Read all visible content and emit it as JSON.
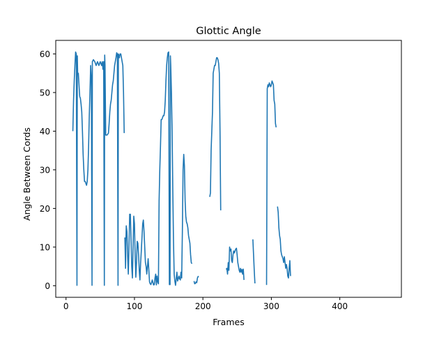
{
  "chart_data": {
    "type": "line",
    "title": "Glottic Angle",
    "xlabel": "Frames",
    "ylabel": "Angle Between Cords",
    "xlim": [
      -15,
      490
    ],
    "ylim": [
      -3.0,
      63.5
    ],
    "xticks": [
      0,
      100,
      200,
      300,
      400
    ],
    "yticks": [
      0,
      10,
      20,
      30,
      40,
      50,
      60
    ],
    "grid": false,
    "legend": "none",
    "line_color": "#1f77b4",
    "series": [
      {
        "segments": [
          [
            [
              10,
              40
            ],
            [
              11,
              48
            ],
            [
              12,
              53
            ],
            [
              13,
              57
            ],
            [
              14,
              60.5
            ],
            [
              15,
              60
            ],
            [
              16,
              0.1
            ],
            [
              16.5,
              59.5
            ],
            [
              17,
              55
            ],
            [
              18,
              55
            ],
            [
              19,
              52
            ],
            [
              20,
              49
            ],
            [
              21,
              48.5
            ],
            [
              22,
              47
            ],
            [
              23,
              45
            ],
            [
              24,
              40
            ],
            [
              25,
              34
            ],
            [
              26,
              30
            ],
            [
              27,
              27
            ],
            [
              28,
              27
            ],
            [
              29,
              26.5
            ],
            [
              30,
              26
            ],
            [
              31,
              27
            ],
            [
              32,
              30
            ],
            [
              33,
              36
            ],
            [
              34,
              44
            ],
            [
              35,
              50
            ],
            [
              36,
              57
            ],
            [
              37,
              54
            ],
            [
              38,
              0.1
            ],
            [
              38.5,
              58
            ],
            [
              40,
              58.5
            ],
            [
              42,
              58
            ],
            [
              44,
              57
            ],
            [
              46,
              58
            ],
            [
              48,
              57
            ],
            [
              50,
              58
            ],
            [
              52,
              57
            ],
            [
              53,
              58
            ],
            [
              54,
              56
            ],
            [
              55,
              58
            ],
            [
              56,
              0.1
            ],
            [
              56.5,
              59.7
            ],
            [
              57,
              57
            ],
            [
              58,
              39
            ],
            [
              60,
              39
            ],
            [
              62,
              39.5
            ],
            [
              63,
              42
            ],
            [
              64,
              45
            ],
            [
              65,
              47
            ],
            [
              66,
              48
            ],
            [
              67,
              50
            ],
            [
              68,
              52
            ],
            [
              69,
              53
            ],
            [
              70,
              55
            ],
            [
              71,
              57
            ],
            [
              72,
              58
            ],
            [
              73,
              59
            ],
            [
              74,
              60.3
            ],
            [
              75,
              60
            ],
            [
              76,
              0.1
            ],
            [
              76.5,
              60
            ],
            [
              78,
              59
            ],
            [
              79,
              60
            ],
            [
              80,
              60
            ],
            [
              82,
              58
            ],
            [
              83,
              57
            ],
            [
              84,
              50
            ],
            [
              85,
              39.5
            ]
          ],
          [
            [
              86,
              12.5
            ],
            [
              87,
              4.5
            ],
            [
              87.5,
              11.5
            ],
            [
              88,
              15.5
            ],
            [
              89,
              14
            ],
            [
              90,
              8
            ],
            [
              91,
              3
            ],
            [
              92,
              10
            ],
            [
              93,
              18.5
            ],
            [
              94,
              18.5
            ],
            [
              95,
              12
            ],
            [
              96,
              5
            ],
            [
              97,
              2
            ],
            [
              98,
              10
            ],
            [
              99,
              18
            ],
            [
              100,
              16
            ],
            [
              101,
              8
            ],
            [
              102,
              2.2
            ],
            [
              103,
              6
            ],
            [
              104,
              11.5
            ],
            [
              105,
              11
            ],
            [
              106,
              8
            ],
            [
              107,
              4
            ],
            [
              108,
              1.5
            ],
            [
              109,
              6
            ],
            [
              110,
              9
            ],
            [
              111,
              12.5
            ],
            [
              112,
              16
            ],
            [
              113,
              17
            ],
            [
              114,
              14
            ],
            [
              115,
              10
            ],
            [
              116,
              6
            ],
            [
              117,
              5
            ],
            [
              118,
              3
            ],
            [
              119,
              5
            ],
            [
              120,
              7
            ],
            [
              121,
              4
            ],
            [
              122,
              1
            ],
            [
              123,
              0.5
            ],
            [
              124,
              0.3
            ],
            [
              125,
              0.8
            ],
            [
              126,
              1.5
            ],
            [
              127,
              0.8
            ],
            [
              128,
              0.2
            ],
            [
              129,
              0.3
            ],
            [
              130,
              2
            ],
            [
              131,
              3
            ],
            [
              132,
              0.2
            ],
            [
              133,
              2.5
            ],
            [
              134,
              1
            ],
            [
              135,
              0.5
            ],
            [
              136,
              22
            ],
            [
              137,
              30
            ],
            [
              138,
              36
            ],
            [
              139,
              43
            ],
            [
              140,
              43
            ],
            [
              141,
              43.5
            ],
            [
              142,
              44
            ],
            [
              143,
              44
            ],
            [
              144,
              45
            ],
            [
              145,
              48
            ],
            [
              146,
              53
            ],
            [
              147,
              57
            ],
            [
              148,
              59
            ],
            [
              149,
              60.3
            ],
            [
              150,
              60.5
            ],
            [
              151,
              0.3
            ],
            [
              152,
              0.3
            ],
            [
              152.5,
              59.5
            ],
            [
              153,
              57
            ],
            [
              154,
              50
            ],
            [
              155,
              40
            ],
            [
              156,
              25
            ],
            [
              157,
              12
            ],
            [
              158,
              3
            ],
            [
              159,
              1.2
            ],
            [
              160,
              0.1
            ],
            [
              162,
              3.5
            ],
            [
              163,
              1.2
            ],
            [
              164,
              1.8
            ],
            [
              165,
              2.5
            ],
            [
              166,
              1.8
            ],
            [
              167,
              1.5
            ],
            [
              168,
              3.5
            ],
            [
              169,
              2
            ],
            [
              170,
              14
            ],
            [
              171,
              30
            ],
            [
              172,
              34
            ],
            [
              173,
              31
            ],
            [
              174,
              22
            ],
            [
              175,
              18
            ],
            [
              176,
              16.5
            ],
            [
              177,
              16
            ],
            [
              178,
              15
            ],
            [
              179,
              13
            ],
            [
              180,
              12
            ],
            [
              181,
              11
            ],
            [
              182,
              8
            ],
            [
              183,
              6
            ],
            [
              184,
              5.7
            ]
          ]
        ],
        "extra_segments": [
          [
            [
              187,
              1.2
            ],
            [
              188,
              0.5
            ],
            [
              189,
              0.6
            ],
            [
              190,
              1
            ],
            [
              191,
              0.8
            ],
            [
              192,
              2
            ],
            [
              193,
              2.4
            ],
            [
              194,
              2.3
            ]
          ],
          [
            [
              210,
              23
            ],
            [
              211,
              24
            ],
            [
              212,
              35
            ],
            [
              213,
              40
            ],
            [
              214,
              45
            ],
            [
              215,
              55
            ],
            [
              216,
              56
            ],
            [
              217,
              57
            ],
            [
              218,
              57
            ],
            [
              219,
              58
            ],
            [
              220,
              59
            ],
            [
              221,
              59
            ],
            [
              222,
              58.5
            ],
            [
              223,
              57.5
            ],
            [
              224,
              55
            ],
            [
              225,
              40
            ],
            [
              226,
              19.5
            ]
          ],
          [
            [
              234,
              4.2
            ],
            [
              235,
              4.5
            ],
            [
              236,
              3
            ],
            [
              237,
              6
            ],
            [
              238,
              4
            ],
            [
              239,
              10
            ],
            [
              240,
              9
            ],
            [
              241,
              9.5
            ],
            [
              242,
              6.5
            ],
            [
              243,
              6
            ],
            [
              244,
              8
            ],
            [
              245,
              9
            ],
            [
              246,
              8.5
            ],
            [
              247,
              9
            ],
            [
              248,
              9.5
            ],
            [
              249,
              9.7
            ],
            [
              250,
              8
            ],
            [
              251,
              6
            ],
            [
              252,
              5
            ],
            [
              253,
              4
            ],
            [
              254,
              3.5
            ],
            [
              255,
              4.5
            ],
            [
              256,
              3.5
            ],
            [
              257,
              4.2
            ],
            [
              258,
              3
            ],
            [
              259,
              4.3
            ],
            [
              260,
              1.5
            ]
          ],
          [
            [
              273,
              12
            ],
            [
              274,
              8
            ],
            [
              275,
              4
            ],
            [
              276,
              0.6
            ]
          ],
          [
            [
              293,
              0.2
            ],
            [
              294,
              51
            ],
            [
              295,
              52
            ],
            [
              296,
              51.5
            ],
            [
              297,
              52.5
            ],
            [
              298,
              52
            ],
            [
              299,
              51.5
            ],
            [
              300,
              52
            ],
            [
              301,
              53
            ],
            [
              302,
              52.5
            ],
            [
              303,
              52
            ],
            [
              304,
              48
            ],
            [
              305,
              47
            ],
            [
              306,
              42
            ],
            [
              307,
              41
            ]
          ],
          [
            [
              309,
              20.5
            ],
            [
              310,
              19
            ],
            [
              311,
              15
            ],
            [
              312,
              13
            ],
            [
              313,
              12
            ],
            [
              314,
              9
            ],
            [
              315,
              8
            ],
            [
              316,
              7.5
            ],
            [
              317,
              7
            ],
            [
              318,
              6
            ],
            [
              319,
              7.5
            ],
            [
              320,
              6
            ],
            [
              321,
              4.5
            ],
            [
              322,
              5.5
            ],
            [
              323,
              4.5
            ],
            [
              324,
              2.5
            ],
            [
              325,
              2
            ],
            [
              326,
              4.5
            ],
            [
              327,
              6.5
            ],
            [
              328,
              2.5
            ]
          ]
        ]
      }
    ]
  }
}
